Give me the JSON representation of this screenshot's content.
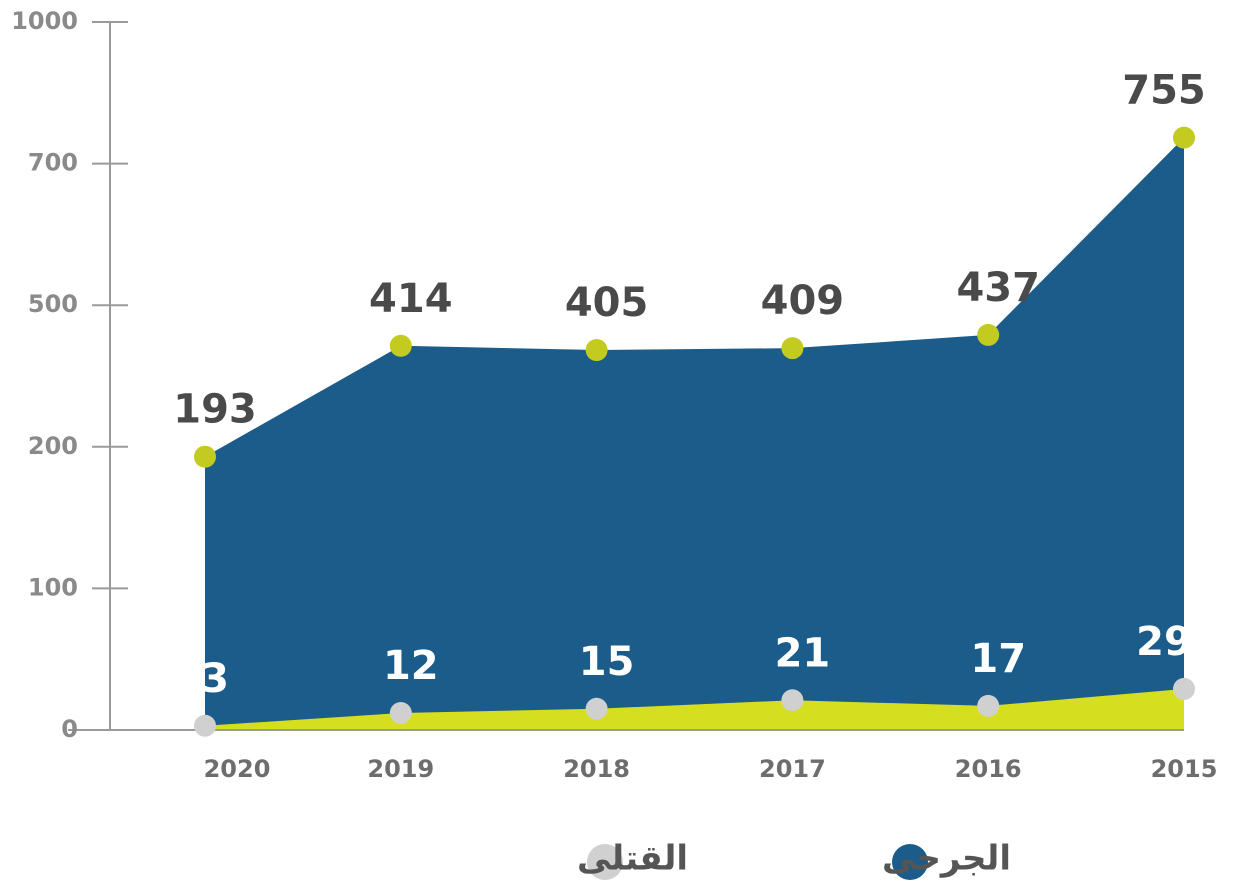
{
  "chart_data": {
    "type": "area",
    "categories": [
      "2020",
      "2019",
      "2018",
      "2017",
      "2016",
      "2015"
    ],
    "series": [
      {
        "name": "الجرحى",
        "color": "#1b5c8a",
        "marker_color": "#c3cb21",
        "values": [
          193,
          414,
          405,
          409,
          437,
          755
        ]
      },
      {
        "name": "القتلى",
        "color": "#d5df1f",
        "marker_color": "#d0d0d0",
        "values": [
          3,
          12,
          15,
          21,
          17,
          29
        ]
      }
    ],
    "ylim": [
      0,
      1000
    ],
    "yticks": [
      0,
      100,
      200,
      500,
      700,
      1000
    ]
  }
}
